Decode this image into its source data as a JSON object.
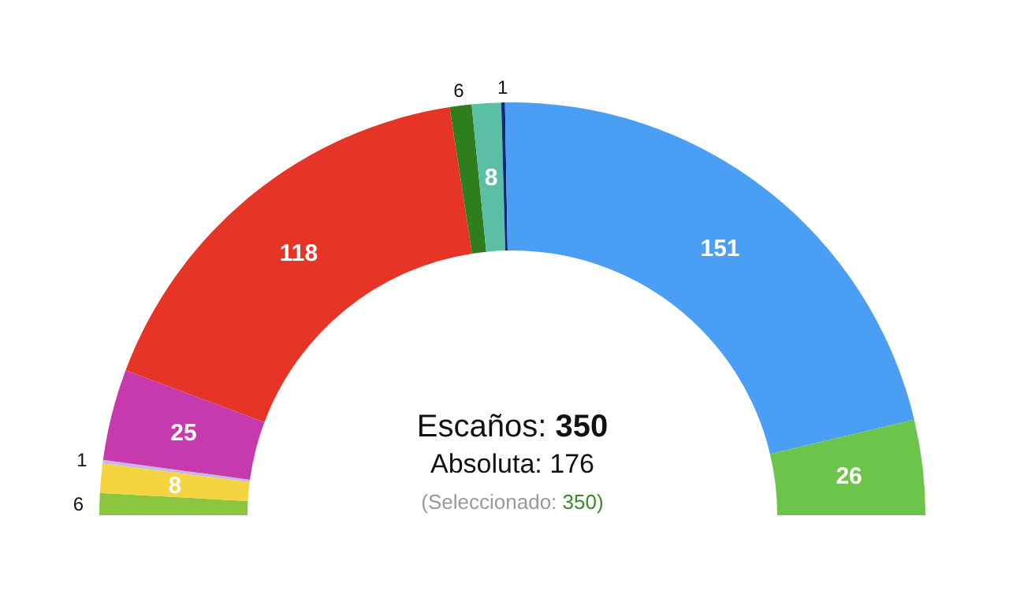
{
  "chart_data": {
    "type": "donut",
    "categories": [
      null,
      null,
      null,
      null,
      null,
      null,
      null,
      null,
      null,
      null
    ],
    "values": [
      6,
      8,
      1,
      25,
      118,
      6,
      8,
      1,
      151,
      26
    ],
    "colors": [
      "#8cc63f",
      "#f5d442",
      "#c9b6e4",
      "#c63aad",
      "#e63426",
      "#2e7d1e",
      "#5bbfa5",
      "#0b2a7a",
      "#4a9ff5",
      "#6cc44a"
    ],
    "data_labels": true,
    "annotations": [
      "Escaños: 350",
      "Absoluta: 176",
      "(Seleccionado: 350)"
    ]
  }
}
